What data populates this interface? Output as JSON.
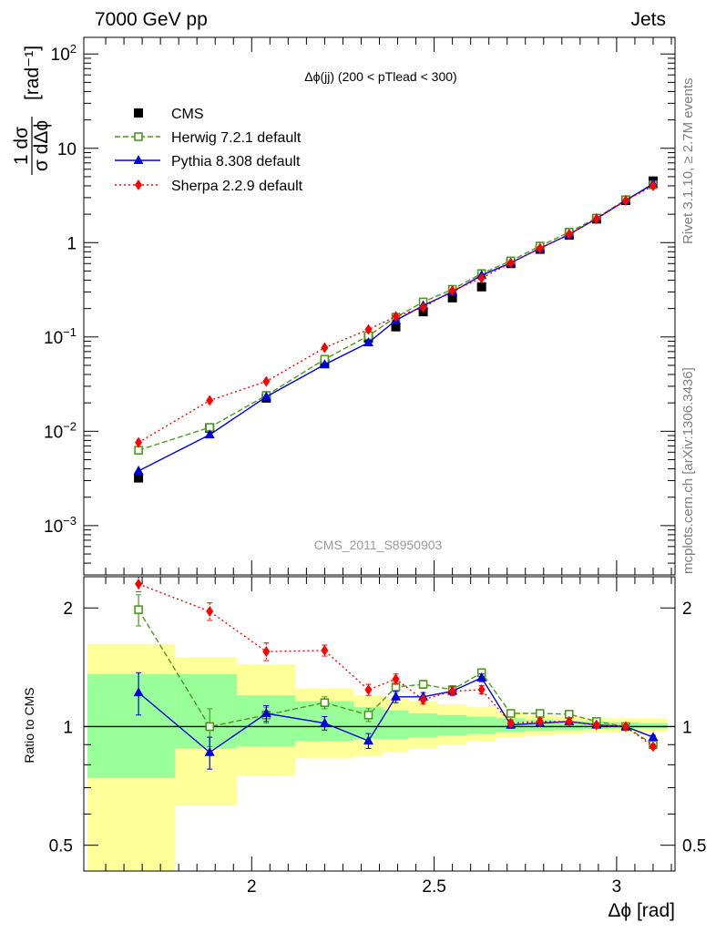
{
  "header": {
    "left": "7000 GeV pp",
    "right": "Jets"
  },
  "side_labels": {
    "rivet": "Rivet 3.1.10, ≥ 2.7M events",
    "source": "mcplots.cern.ch [arXiv:1306.3436]"
  },
  "chart_data": [
    {
      "type": "scatter",
      "panel": "main",
      "title": "Δϕ(jj) (200 < pTlead <  300)",
      "watermark": "CMS_2011_S8950903",
      "ylabel": "1/σ dσ/dΔϕ [rad⁻¹]",
      "ylabel_parts": {
        "numerator": "1 dσ",
        "denominator": "σ dΔϕ",
        "unit": "[rad⁻¹]"
      },
      "yscale": "log",
      "ylim": [
        0.0003,
        150
      ],
      "xlim": [
        1.54,
        3.16
      ],
      "y_tick_labels": [
        {
          "value": 0.001,
          "base": "10",
          "exp": "−3"
        },
        {
          "value": 0.01,
          "base": "10",
          "exp": "−2"
        },
        {
          "value": 0.1,
          "base": "10",
          "exp": "−1"
        },
        {
          "value": 1,
          "base": "1",
          "exp": ""
        },
        {
          "value": 10,
          "base": "10",
          "exp": ""
        },
        {
          "value": 100,
          "base": "10",
          "exp": "2"
        }
      ],
      "legend_position": "top-left",
      "x": [
        1.69,
        1.885,
        2.04,
        2.2,
        2.32,
        2.395,
        2.47,
        2.55,
        2.63,
        2.71,
        2.79,
        2.87,
        2.945,
        3.025,
        3.1
      ],
      "series": [
        {
          "name": "CMS",
          "color": "#000000",
          "marker": "square-filled",
          "line": "none",
          "values": [
            0.0032,
            0.0108,
            0.0225,
            0.052,
            0.097,
            0.128,
            0.185,
            0.26,
            0.34,
            0.6,
            0.85,
            1.2,
            1.78,
            2.8,
            4.5
          ]
        },
        {
          "name": "Herwig 7.2.1 default",
          "color": "#4a9a1a",
          "marker": "square-open",
          "line": "dashed",
          "values": [
            0.0063,
            0.011,
            0.024,
            0.058,
            0.103,
            0.162,
            0.235,
            0.32,
            0.47,
            0.64,
            0.92,
            1.29,
            1.82,
            2.85,
            4.1
          ]
        },
        {
          "name": "Pythia 8.308 default",
          "color": "#0000dd",
          "marker": "triangle-filled",
          "line": "solid",
          "values": [
            0.0038,
            0.0092,
            0.0232,
            0.051,
            0.087,
            0.15,
            0.215,
            0.3,
            0.45,
            0.61,
            0.87,
            1.22,
            1.8,
            2.8,
            4.2
          ]
        },
        {
          "name": "Sherpa 2.2.9 default",
          "color": "#ff0000",
          "marker": "diamond-filled",
          "line": "dotted",
          "values": [
            0.0076,
            0.0212,
            0.0338,
            0.077,
            0.12,
            0.165,
            0.205,
            0.31,
            0.42,
            0.61,
            0.87,
            1.23,
            1.79,
            2.79,
            4.0
          ]
        }
      ]
    },
    {
      "type": "scatter",
      "panel": "ratio",
      "ylabel": "Ratio to CMS",
      "xlabel": "Δϕ [rad]",
      "yscale": "log",
      "ylim": [
        0.43,
        2.4
      ],
      "xlim": [
        1.54,
        3.16
      ],
      "x_ticks": [
        2,
        2.5,
        3
      ],
      "x_tick_labels": [
        "2",
        "2.5",
        "3"
      ],
      "y_ticks": [
        0.5,
        1,
        2
      ],
      "y_tick_labels": [
        "0.5",
        "1",
        "2"
      ],
      "bins": [
        {
          "lo": 1.55,
          "hi": 1.79,
          "band1": [
            0.74,
            1.36
          ],
          "band2": [
            0.4,
            1.62
          ]
        },
        {
          "lo": 1.79,
          "hi": 1.96,
          "band1": [
            0.88,
            1.36
          ],
          "band2": [
            0.63,
            1.5
          ]
        },
        {
          "lo": 1.96,
          "hi": 2.12,
          "band1": [
            0.89,
            1.2
          ],
          "band2": [
            0.75,
            1.44
          ]
        },
        {
          "lo": 2.12,
          "hi": 2.28,
          "band1": [
            0.92,
            1.16
          ],
          "band2": [
            0.83,
            1.25
          ]
        },
        {
          "lo": 2.28,
          "hi": 2.36,
          "band1": [
            0.93,
            1.12
          ],
          "band2": [
            0.84,
            1.2
          ]
        },
        {
          "lo": 2.36,
          "hi": 2.43,
          "band1": [
            0.93,
            1.1
          ],
          "band2": [
            0.86,
            1.18
          ]
        },
        {
          "lo": 2.43,
          "hi": 2.51,
          "band1": [
            0.94,
            1.08
          ],
          "band2": [
            0.88,
            1.16
          ]
        },
        {
          "lo": 2.51,
          "hi": 2.59,
          "band1": [
            0.95,
            1.07
          ],
          "band2": [
            0.9,
            1.14
          ]
        },
        {
          "lo": 2.59,
          "hi": 2.67,
          "band1": [
            0.96,
            1.06
          ],
          "band2": [
            0.92,
            1.12
          ]
        },
        {
          "lo": 2.67,
          "hi": 2.75,
          "band1": [
            0.97,
            1.05
          ],
          "band2": [
            0.94,
            1.09
          ]
        },
        {
          "lo": 2.75,
          "hi": 2.83,
          "band1": [
            0.975,
            1.04
          ],
          "band2": [
            0.95,
            1.07
          ]
        },
        {
          "lo": 2.83,
          "hi": 2.91,
          "band1": [
            0.98,
            1.035
          ],
          "band2": [
            0.96,
            1.06
          ]
        },
        {
          "lo": 2.91,
          "hi": 2.98,
          "band1": [
            0.985,
            1.03
          ],
          "band2": [
            0.965,
            1.05
          ]
        },
        {
          "lo": 2.98,
          "hi": 3.06,
          "band1": [
            0.99,
            1.025
          ],
          "band2": [
            0.97,
            1.05
          ]
        },
        {
          "lo": 3.06,
          "hi": 3.14,
          "band1": [
            0.99,
            1.02
          ],
          "band2": [
            0.97,
            1.05
          ]
        }
      ],
      "band_colors": {
        "inner": "#99ff99",
        "outer": "#ffff99"
      },
      "reference_line": 1,
      "x": [
        1.69,
        1.885,
        2.04,
        2.2,
        2.32,
        2.395,
        2.47,
        2.55,
        2.63,
        2.71,
        2.79,
        2.87,
        2.945,
        3.025,
        3.1
      ],
      "series": [
        {
          "name": "Herwig 7.2.1 default",
          "color": "#4a9a1a",
          "marker": "square-open",
          "line": "dashed",
          "values": [
            1.98,
            1.0,
            1.07,
            1.15,
            1.07,
            1.26,
            1.28,
            1.24,
            1.37,
            1.08,
            1.08,
            1.075,
            1.03,
            1.0,
            0.9
          ],
          "errors": [
            0.18,
            0.11,
            0.05,
            0.04,
            0.04,
            0.04,
            0.03,
            0.03,
            0.03,
            0.02,
            0.02,
            0.02,
            0.01,
            0.01,
            0.01
          ]
        },
        {
          "name": "Pythia 8.308 default",
          "color": "#0000dd",
          "marker": "triangle-filled",
          "line": "solid",
          "values": [
            1.22,
            0.86,
            1.08,
            1.02,
            0.92,
            1.19,
            1.19,
            1.23,
            1.33,
            1.01,
            1.02,
            1.03,
            1.01,
            1.0,
            0.94
          ],
          "errors": [
            0.15,
            0.08,
            0.05,
            0.04,
            0.04,
            0.04,
            0.03,
            0.03,
            0.03,
            0.02,
            0.02,
            0.02,
            0.01,
            0.01,
            0.01
          ]
        },
        {
          "name": "Sherpa 2.2.9 default",
          "color": "#ff0000",
          "marker": "diamond-filled",
          "line": "dotted",
          "values": [
            2.3,
            1.96,
            1.55,
            1.56,
            1.24,
            1.32,
            1.17,
            1.23,
            1.24,
            1.02,
            1.03,
            1.03,
            1.01,
            1.0,
            0.89
          ],
          "errors": [
            0.1,
            0.1,
            0.08,
            0.05,
            0.04,
            0.04,
            0.03,
            0.03,
            0.03,
            0.02,
            0.02,
            0.02,
            0.01,
            0.01,
            0.01
          ]
        }
      ]
    }
  ]
}
